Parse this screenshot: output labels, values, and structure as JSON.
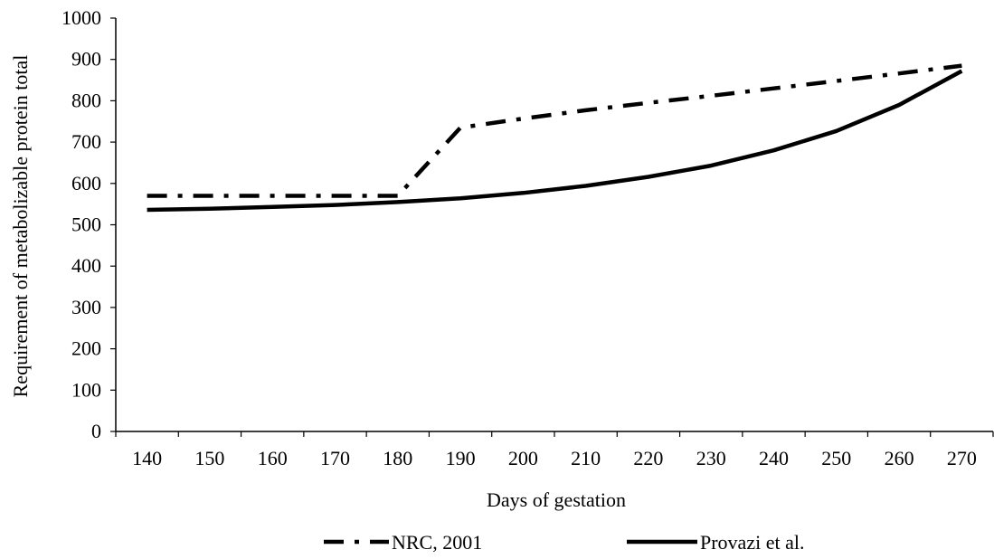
{
  "chart_data": {
    "type": "line",
    "xlabel": "Days of gestation",
    "ylabel": "Requirement of metabolizable protein total",
    "x": [
      140,
      150,
      160,
      170,
      180,
      190,
      200,
      210,
      220,
      230,
      240,
      250,
      260,
      270
    ],
    "x_tick_labels": [
      "140",
      "150",
      "160",
      "170",
      "180",
      "190",
      "200",
      "210",
      "220",
      "230",
      "240",
      "250",
      "260",
      "270"
    ],
    "ylim": [
      0,
      1000
    ],
    "y_ticks": [
      0,
      100,
      200,
      300,
      400,
      500,
      600,
      700,
      800,
      900,
      1000
    ],
    "y_tick_labels": [
      "0",
      "100",
      "200",
      "300",
      "400",
      "500",
      "600",
      "700",
      "800",
      "900",
      "1000"
    ],
    "grid": false,
    "legend_position": "bottom",
    "series": [
      {
        "name": "NRC, 2001",
        "style": "dash-dot",
        "color": "#000000",
        "values": [
          570,
          570,
          570,
          570,
          570,
          735,
          757,
          777,
          795,
          812,
          830,
          848,
          866,
          885
        ]
      },
      {
        "name": "Provazi et al.",
        "style": "solid",
        "color": "#000000",
        "values": [
          536,
          539,
          543,
          548,
          555,
          564,
          577,
          594,
          616,
          643,
          680,
          727,
          790,
          872
        ]
      }
    ]
  }
}
